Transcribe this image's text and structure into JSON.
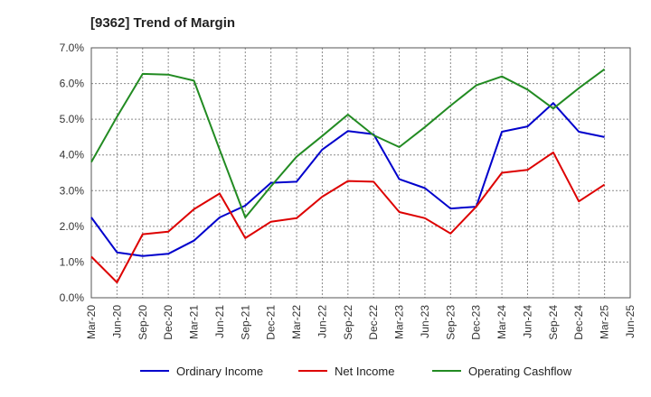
{
  "chart_data": {
    "type": "line",
    "title": "[9362]  Trend of Margin",
    "xlabel": "",
    "ylabel": "",
    "x": [
      "Mar-20",
      "Jun-20",
      "Sep-20",
      "Dec-20",
      "Mar-21",
      "Jun-21",
      "Sep-21",
      "Dec-21",
      "Mar-22",
      "Jun-22",
      "Sep-22",
      "Dec-22",
      "Mar-23",
      "Jun-23",
      "Sep-23",
      "Dec-23",
      "Mar-24",
      "Jun-24",
      "Sep-24",
      "Dec-24",
      "Mar-25",
      "Jun-25"
    ],
    "yticks": [
      "0.0%",
      "1.0%",
      "2.0%",
      "3.0%",
      "4.0%",
      "5.0%",
      "6.0%",
      "7.0%"
    ],
    "ylim": [
      0,
      7
    ],
    "grid": true,
    "legend_position": "bottom",
    "series": [
      {
        "name": "Ordinary Income",
        "color": "#0000cc",
        "values": [
          2.25,
          1.27,
          1.17,
          1.23,
          1.6,
          2.25,
          2.58,
          3.22,
          3.25,
          4.15,
          4.67,
          4.58,
          3.32,
          3.07,
          2.5,
          2.55,
          4.65,
          4.8,
          5.45,
          4.65,
          4.5,
          null
        ]
      },
      {
        "name": "Net Income",
        "color": "#dd0000",
        "values": [
          1.15,
          0.43,
          1.78,
          1.85,
          2.48,
          2.92,
          1.67,
          2.13,
          2.23,
          2.83,
          3.27,
          3.25,
          2.4,
          2.23,
          1.8,
          2.55,
          3.5,
          3.58,
          4.07,
          2.7,
          3.17,
          null
        ]
      },
      {
        "name": "Operating Cashflow",
        "color": "#228b22",
        "values": [
          3.8,
          5.07,
          6.27,
          6.25,
          6.08,
          4.15,
          2.25,
          3.12,
          3.95,
          4.53,
          5.13,
          4.55,
          4.22,
          4.78,
          5.38,
          5.95,
          6.2,
          5.83,
          5.3,
          5.87,
          6.4,
          null
        ]
      }
    ]
  }
}
